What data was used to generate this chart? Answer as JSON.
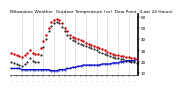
{
  "title": "Milwaukee Weather  Outdoor Temperature (vs)  Dew Point  (Last 24 Hours)",
  "title_fontsize": 3.2,
  "bg_color": "#ffffff",
  "plot_bg_color": "#ffffff",
  "grid_color": "#999999",
  "temp_color": "#cc0000",
  "dew_color": "#0000cc",
  "apparent_color": "#000000",
  "temp_values": [
    28,
    27,
    26,
    25,
    24,
    26,
    28,
    30,
    28,
    27,
    27,
    32,
    38,
    44,
    50,
    55,
    57,
    58,
    57,
    54,
    50,
    47,
    44,
    42,
    41,
    40,
    39,
    38,
    37,
    36,
    35,
    34,
    33,
    32,
    31,
    30,
    29,
    28,
    27,
    26,
    26,
    25,
    25,
    24,
    24,
    23,
    23,
    22
  ],
  "dew_values": [
    14,
    14,
    14,
    14,
    13,
    13,
    13,
    13,
    13,
    13,
    13,
    13,
    13,
    13,
    13,
    12,
    12,
    12,
    13,
    13,
    13,
    14,
    14,
    15,
    15,
    16,
    16,
    17,
    17,
    17,
    17,
    17,
    17,
    17,
    18,
    18,
    18,
    18,
    19,
    19,
    19,
    20,
    20,
    21,
    21,
    21,
    21,
    22
  ],
  "apparent_values": [
    20,
    19,
    18,
    17,
    16,
    18,
    20,
    23,
    21,
    20,
    20,
    26,
    33,
    40,
    47,
    52,
    54,
    55,
    54,
    51,
    47,
    44,
    41,
    39,
    38,
    37,
    36,
    35,
    34,
    33,
    32,
    31,
    30,
    29,
    28,
    27,
    26,
    25,
    24,
    23,
    23,
    22,
    22,
    21,
    21,
    20,
    20,
    19
  ],
  "ylim": [
    8,
    62
  ],
  "ytick_values": [
    10,
    20,
    30,
    40,
    50,
    60
  ],
  "ytick_labels": [
    "10",
    "20",
    "30",
    "40",
    "50",
    "60"
  ],
  "n_points": 48,
  "vgrid_every": 4
}
